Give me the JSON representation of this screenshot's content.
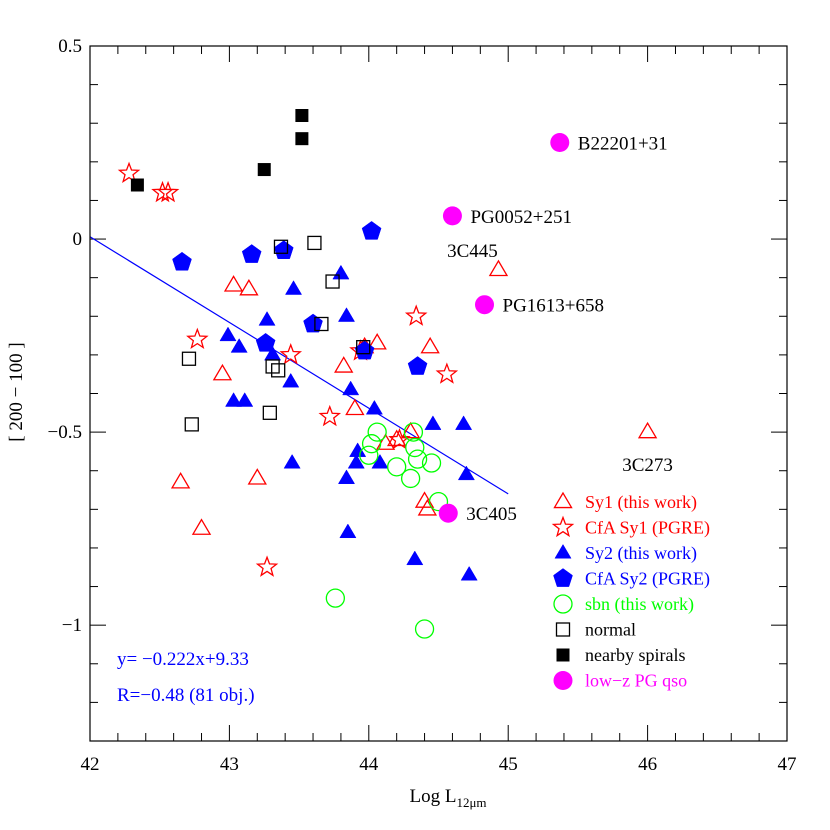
{
  "chart_data": {
    "type": "scatter",
    "title": "",
    "xlabel": "Log L",
    "xlabel_sub": "12μm",
    "ylabel": "[ 200 − 100 ]",
    "xlim": [
      42,
      47
    ],
    "ylim": [
      -1.3,
      0.5
    ],
    "x_major_ticks": [
      42,
      43,
      44,
      45,
      46,
      47
    ],
    "y_major_ticks": [
      -1,
      -0.5,
      0,
      0.5
    ],
    "x_tick_labels": [
      "42",
      "43",
      "44",
      "45",
      "46",
      "47"
    ],
    "y_tick_labels": [
      "−1",
      "−0.5",
      "0",
      "0.5"
    ],
    "fit_line": {
      "slope": -0.222,
      "intercept": 9.33,
      "x_range": [
        42,
        45
      ],
      "color": "#0000ff"
    },
    "stats": {
      "equation": "y= −0.222x+9.33",
      "correlation": "R=−0.48 (81 obj.)",
      "color": "#0000ff"
    },
    "series": [
      {
        "name": "Sy1 (this work)",
        "marker": "triangle-open",
        "color": "#ff0000",
        "x": [
          42.65,
          42.8,
          42.95,
          43.03,
          43.14,
          43.2,
          43.82,
          43.9,
          43.97,
          44.06,
          44.12,
          44.2,
          44.3,
          44.4,
          44.42,
          44.44,
          44.93,
          46.0
        ],
        "y": [
          -0.63,
          -0.75,
          -0.35,
          -0.12,
          -0.13,
          -0.62,
          -0.33,
          -0.44,
          -0.28,
          -0.27,
          -0.53,
          -0.52,
          -0.5,
          -0.68,
          -0.7,
          -0.28,
          -0.08,
          -0.5
        ]
      },
      {
        "name": "CfA Sy1 (PGRE)",
        "marker": "star-open",
        "color": "#ff0000",
        "x": [
          42.28,
          42.52,
          42.56,
          42.77,
          43.27,
          43.44,
          43.72,
          43.94,
          44.22,
          44.34,
          44.56
        ],
        "y": [
          0.17,
          0.12,
          0.12,
          -0.26,
          -0.85,
          -0.3,
          -0.46,
          -0.29,
          -0.52,
          -0.2,
          -0.35
        ]
      },
      {
        "name": "Sy2 (this work)",
        "marker": "triangle-filled",
        "color": "#0000ff",
        "x": [
          42.99,
          43.03,
          43.07,
          43.11,
          43.27,
          43.31,
          43.44,
          43.45,
          43.46,
          43.8,
          43.84,
          43.84,
          43.85,
          43.87,
          43.91,
          43.92,
          44.04,
          44.08,
          44.33,
          44.46,
          44.68,
          44.7,
          44.72
        ],
        "y": [
          -0.25,
          -0.42,
          -0.28,
          -0.42,
          -0.21,
          -0.3,
          -0.37,
          -0.58,
          -0.13,
          -0.09,
          -0.62,
          -0.2,
          -0.76,
          -0.39,
          -0.58,
          -0.55,
          -0.44,
          -0.58,
          -0.83,
          -0.48,
          -0.48,
          -0.61,
          -0.87
        ]
      },
      {
        "name": "CfA Sy2 (PGRE)",
        "marker": "pentagon-filled",
        "color": "#0000ff",
        "x": [
          42.66,
          43.16,
          43.26,
          43.39,
          43.6,
          43.97,
          44.02,
          44.35
        ],
        "y": [
          -0.06,
          -0.04,
          -0.27,
          -0.03,
          -0.22,
          -0.29,
          0.02,
          -0.33
        ]
      },
      {
        "name": "sbn (this work)",
        "marker": "circle-open",
        "color": "#00ff00",
        "x": [
          43.76,
          44.0,
          44.02,
          44.06,
          44.2,
          44.3,
          44.32,
          44.33,
          44.35,
          44.4,
          44.45,
          44.5
        ],
        "y": [
          -0.93,
          -0.56,
          -0.53,
          -0.5,
          -0.59,
          -0.62,
          -0.5,
          -0.54,
          -0.57,
          -1.01,
          -0.58,
          -0.68
        ]
      },
      {
        "name": "normal",
        "marker": "square-open",
        "color": "#000000",
        "x": [
          42.71,
          42.73,
          43.29,
          43.31,
          43.35,
          43.37,
          43.61,
          43.66,
          43.74,
          43.96
        ],
        "y": [
          -0.31,
          -0.48,
          -0.45,
          -0.33,
          -0.34,
          -0.02,
          -0.01,
          -0.22,
          -0.11,
          -0.28
        ]
      },
      {
        "name": "nearby spirals",
        "marker": "square-filled",
        "color": "#000000",
        "x": [
          42.34,
          43.25,
          43.52,
          43.52
        ],
        "y": [
          0.14,
          0.18,
          0.32,
          0.26
        ]
      },
      {
        "name": "low−z PG qso",
        "marker": "circle-filled",
        "color": "#ff00ff",
        "x": [
          44.57,
          44.6,
          44.83,
          45.37
        ],
        "y": [
          -0.71,
          0.06,
          -0.17,
          0.25
        ]
      }
    ],
    "annotations": [
      {
        "text": "B22201+31",
        "x": 45.37,
        "y": 0.25,
        "anchor": "right-of-point"
      },
      {
        "text": "PG0052+251",
        "x": 44.6,
        "y": 0.06,
        "anchor": "right-of-point"
      },
      {
        "text": "3C445",
        "x": 44.93,
        "y": -0.08,
        "anchor": "above-point"
      },
      {
        "text": "PG1613+658",
        "x": 44.83,
        "y": -0.17,
        "anchor": "right-of-point"
      },
      {
        "text": "3C273",
        "x": 46.0,
        "y": -0.5,
        "anchor": "below-point"
      },
      {
        "text": "3C405",
        "x": 44.57,
        "y": -0.71,
        "anchor": "right-of-point"
      }
    ],
    "legend_position": "bottom-right",
    "grid": false
  }
}
